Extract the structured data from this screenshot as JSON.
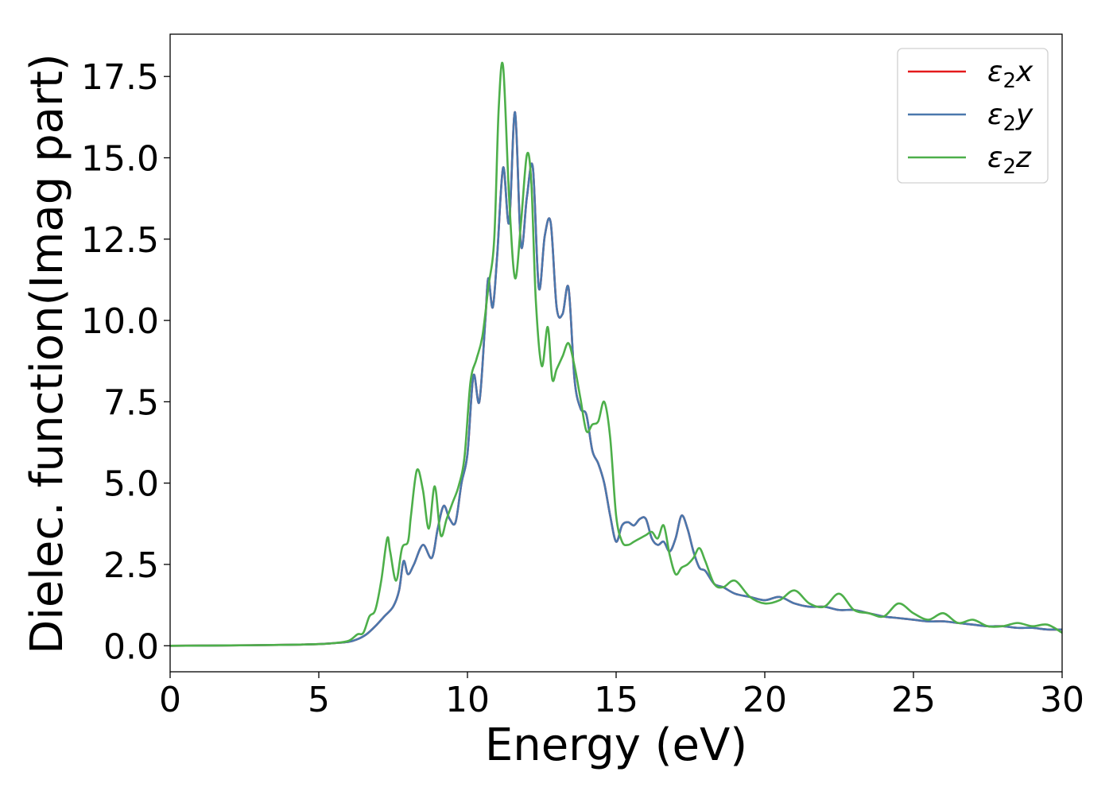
{
  "chart_data": {
    "type": "line",
    "xlabel": "Energy (eV)",
    "ylabel": "Dielec. function(Imag part)",
    "xlim": [
      0,
      30
    ],
    "ylim": [
      -0.8,
      18.8
    ],
    "xticks": [
      "0",
      "5",
      "10",
      "15",
      "20",
      "25",
      "30"
    ],
    "yticks": [
      "0.0",
      "2.5",
      "5.0",
      "7.5",
      "10.0",
      "12.5",
      "15.0",
      "17.5"
    ],
    "grid": false,
    "legend_position": "top-right",
    "series": [
      {
        "name": "ε2x",
        "label_base": "ε",
        "label_sub": "2",
        "label_axis": "x",
        "color": "#e41a1c",
        "x": [
          0,
          2,
          4,
          5,
          5.5,
          6,
          6.3,
          6.6,
          6.9,
          7.2,
          7.5,
          7.7,
          7.85,
          8.0,
          8.2,
          8.5,
          8.8,
          9.0,
          9.2,
          9.4,
          9.6,
          9.8,
          10.0,
          10.2,
          10.4,
          10.6,
          10.7,
          10.85,
          11.0,
          11.2,
          11.4,
          11.6,
          11.8,
          12.0,
          12.2,
          12.4,
          12.6,
          12.8,
          13.0,
          13.2,
          13.4,
          13.6,
          13.8,
          14.0,
          14.2,
          14.4,
          14.6,
          14.8,
          15.0,
          15.2,
          15.4,
          15.6,
          15.8,
          16.0,
          16.2,
          16.4,
          16.6,
          16.8,
          17.0,
          17.2,
          17.4,
          17.6,
          17.8,
          18.0,
          18.3,
          18.6,
          19.0,
          19.5,
          20.0,
          20.5,
          21.0,
          21.5,
          22.0,
          22.5,
          23.0,
          23.5,
          24.0,
          24.5,
          25.0,
          25.5,
          26.0,
          26.5,
          27.0,
          27.5,
          28.0,
          28.5,
          29.0,
          29.5,
          30.0
        ],
        "values": [
          0,
          0.01,
          0.03,
          0.05,
          0.08,
          0.12,
          0.2,
          0.35,
          0.6,
          0.9,
          1.2,
          1.7,
          2.6,
          2.2,
          2.5,
          3.1,
          2.7,
          3.6,
          4.3,
          3.9,
          3.8,
          5.0,
          5.9,
          8.3,
          7.5,
          10.0,
          11.3,
          10.4,
          12.0,
          14.7,
          13.0,
          16.4,
          12.3,
          13.8,
          14.7,
          11.0,
          12.6,
          13.0,
          10.4,
          10.2,
          11.0,
          8.2,
          7.3,
          7.1,
          6.0,
          5.6,
          5.0,
          4.0,
          3.2,
          3.7,
          3.8,
          3.7,
          3.9,
          3.9,
          3.3,
          3.1,
          3.2,
          2.9,
          3.3,
          4.0,
          3.6,
          2.9,
          2.4,
          2.3,
          1.9,
          1.8,
          1.6,
          1.5,
          1.4,
          1.5,
          1.3,
          1.2,
          1.2,
          1.1,
          1.1,
          1.0,
          0.9,
          0.85,
          0.8,
          0.75,
          0.75,
          0.7,
          0.65,
          0.6,
          0.6,
          0.55,
          0.55,
          0.5,
          0.5
        ]
      },
      {
        "name": "ε2y",
        "label_base": "ε",
        "label_sub": "2",
        "label_axis": "y",
        "color": "#4a78ad",
        "x": [
          0,
          2,
          4,
          5,
          5.5,
          6,
          6.3,
          6.6,
          6.9,
          7.2,
          7.5,
          7.7,
          7.85,
          8.0,
          8.2,
          8.5,
          8.8,
          9.0,
          9.2,
          9.4,
          9.6,
          9.8,
          10.0,
          10.2,
          10.4,
          10.6,
          10.7,
          10.85,
          11.0,
          11.2,
          11.4,
          11.6,
          11.8,
          12.0,
          12.2,
          12.4,
          12.6,
          12.8,
          13.0,
          13.2,
          13.4,
          13.6,
          13.8,
          14.0,
          14.2,
          14.4,
          14.6,
          14.8,
          15.0,
          15.2,
          15.4,
          15.6,
          15.8,
          16.0,
          16.2,
          16.4,
          16.6,
          16.8,
          17.0,
          17.2,
          17.4,
          17.6,
          17.8,
          18.0,
          18.3,
          18.6,
          19.0,
          19.5,
          20.0,
          20.5,
          21.0,
          21.5,
          22.0,
          22.5,
          23.0,
          23.5,
          24.0,
          24.5,
          25.0,
          25.5,
          26.0,
          26.5,
          27.0,
          27.5,
          28.0,
          28.5,
          29.0,
          29.5,
          30.0
        ],
        "values": [
          0,
          0.01,
          0.03,
          0.05,
          0.08,
          0.12,
          0.2,
          0.35,
          0.6,
          0.9,
          1.2,
          1.7,
          2.6,
          2.2,
          2.5,
          3.1,
          2.7,
          3.6,
          4.3,
          3.9,
          3.8,
          5.0,
          5.9,
          8.3,
          7.5,
          10.0,
          11.3,
          10.4,
          12.0,
          14.7,
          13.0,
          16.4,
          12.3,
          13.8,
          14.7,
          11.0,
          12.6,
          13.0,
          10.4,
          10.2,
          11.0,
          8.2,
          7.3,
          7.1,
          6.0,
          5.6,
          5.0,
          4.0,
          3.2,
          3.7,
          3.8,
          3.7,
          3.9,
          3.9,
          3.3,
          3.1,
          3.2,
          2.9,
          3.3,
          4.0,
          3.6,
          2.9,
          2.4,
          2.3,
          1.9,
          1.8,
          1.6,
          1.5,
          1.4,
          1.5,
          1.3,
          1.2,
          1.2,
          1.1,
          1.1,
          1.0,
          0.9,
          0.85,
          0.8,
          0.75,
          0.75,
          0.7,
          0.65,
          0.6,
          0.6,
          0.55,
          0.55,
          0.5,
          0.5
        ]
      },
      {
        "name": "ε2z",
        "label_base": "ε",
        "label_sub": "2",
        "label_axis": "z",
        "color": "#4daf4a",
        "x": [
          0,
          2,
          4,
          5,
          5.5,
          6,
          6.3,
          6.5,
          6.7,
          6.9,
          7.1,
          7.3,
          7.4,
          7.6,
          7.8,
          8.0,
          8.1,
          8.3,
          8.5,
          8.7,
          8.9,
          9.1,
          9.3,
          9.5,
          9.7,
          9.9,
          10.1,
          10.3,
          10.5,
          10.7,
          10.9,
          11.05,
          11.2,
          11.4,
          11.6,
          11.8,
          12.0,
          12.15,
          12.3,
          12.5,
          12.7,
          12.85,
          13.0,
          13.2,
          13.4,
          13.6,
          13.8,
          14.0,
          14.2,
          14.4,
          14.6,
          14.8,
          15.0,
          15.2,
          15.4,
          15.6,
          15.8,
          16.0,
          16.2,
          16.4,
          16.6,
          16.8,
          17.0,
          17.2,
          17.4,
          17.6,
          17.8,
          18.0,
          18.3,
          18.6,
          19.0,
          19.5,
          20.0,
          20.5,
          21.0,
          21.5,
          22.0,
          22.5,
          23.0,
          23.5,
          24.0,
          24.5,
          25.0,
          25.5,
          26.0,
          26.5,
          27.0,
          27.5,
          28.0,
          28.5,
          29.0,
          29.5,
          30.0
        ],
        "values": [
          0,
          0.01,
          0.03,
          0.05,
          0.08,
          0.15,
          0.35,
          0.4,
          0.9,
          1.1,
          2.0,
          3.3,
          2.9,
          2.0,
          3.0,
          3.2,
          4.0,
          5.4,
          4.8,
          3.6,
          4.9,
          3.4,
          3.9,
          4.4,
          4.9,
          5.8,
          8.1,
          8.8,
          9.5,
          11.0,
          12.5,
          16.5,
          17.8,
          13.8,
          11.3,
          13.0,
          15.1,
          14.2,
          10.6,
          8.6,
          9.8,
          8.2,
          8.5,
          8.9,
          9.3,
          8.6,
          7.6,
          6.6,
          6.8,
          6.9,
          7.5,
          6.4,
          4.0,
          3.2,
          3.1,
          3.2,
          3.3,
          3.4,
          3.5,
          3.3,
          3.7,
          2.8,
          2.2,
          2.4,
          2.5,
          2.7,
          3.0,
          2.6,
          1.9,
          1.8,
          2.0,
          1.5,
          1.3,
          1.4,
          1.7,
          1.3,
          1.2,
          1.6,
          1.1,
          1.0,
          0.9,
          1.3,
          1.0,
          0.8,
          1.0,
          0.7,
          0.8,
          0.6,
          0.6,
          0.7,
          0.6,
          0.65,
          0.4
        ]
      }
    ]
  }
}
